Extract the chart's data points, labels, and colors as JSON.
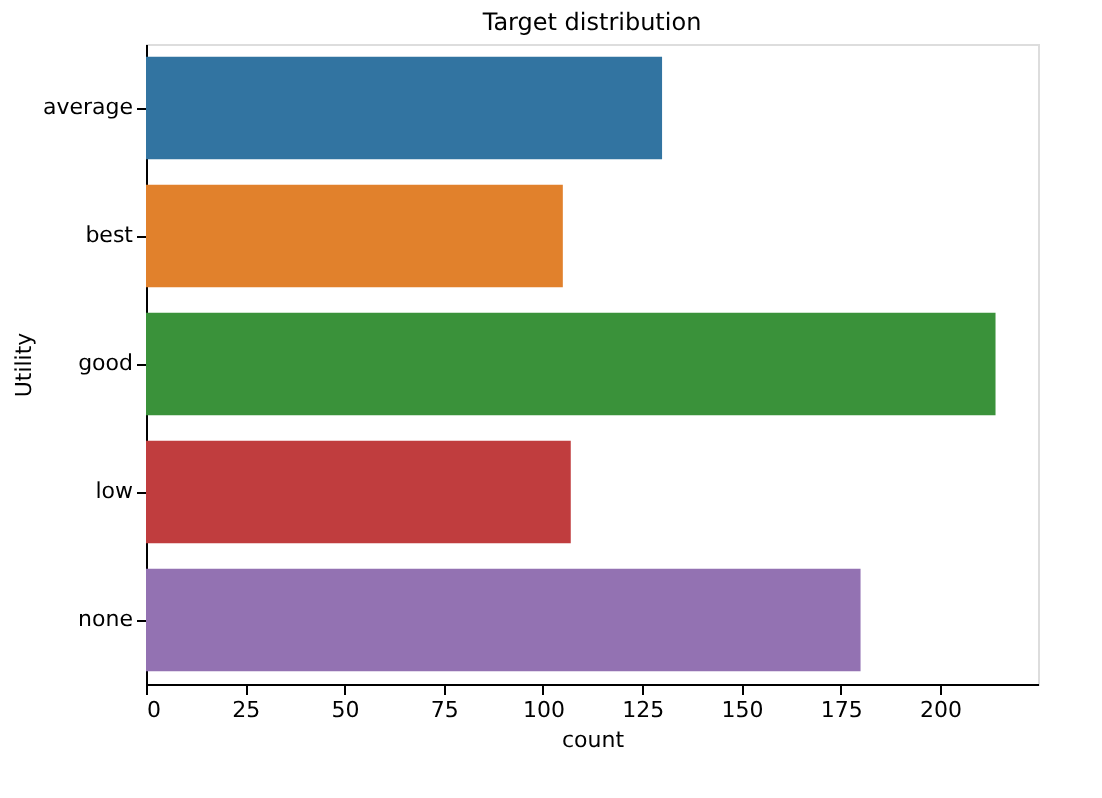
{
  "chart_data": {
    "type": "bar",
    "orientation": "horizontal",
    "title": "Target distribution",
    "xlabel": "count",
    "ylabel": "Utility",
    "categories": [
      "average",
      "best",
      "good",
      "low",
      "none"
    ],
    "values": [
      130,
      105,
      214,
      107,
      180
    ],
    "colors": [
      "#3274a1",
      "#e1812c",
      "#3a923a",
      "#c03d3e",
      "#9372b2"
    ],
    "xlim": [
      0,
      224.7
    ],
    "xticks": [
      0,
      25,
      50,
      75,
      100,
      125,
      150,
      175,
      200
    ],
    "grid": false,
    "legend": false
  }
}
